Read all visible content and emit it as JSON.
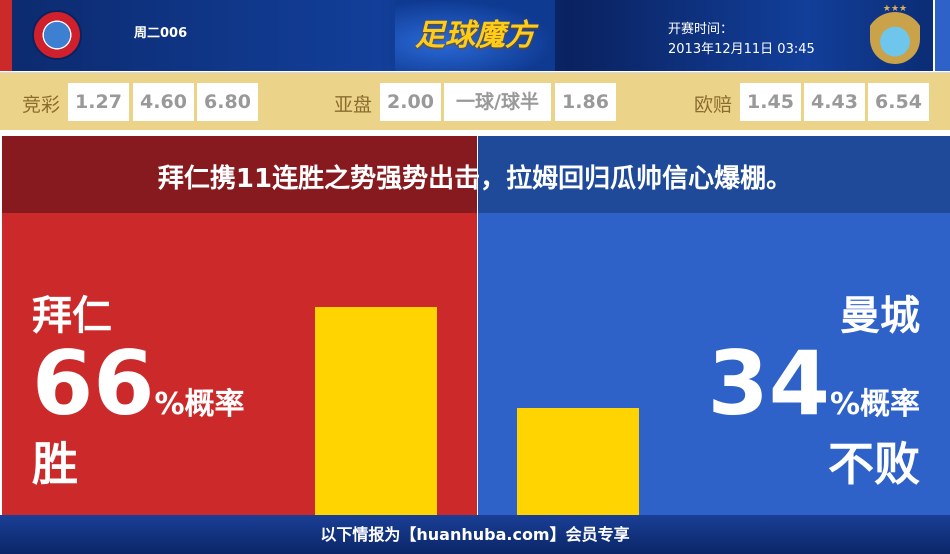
{
  "header": {
    "home_logo": "FC Bayern München crest",
    "away_logo": "Manchester City crest",
    "match_no": "周二006",
    "brand": "足球魔方",
    "time_label": "开赛时间：",
    "time_value": "2013年12月11日 03:45"
  },
  "odds": {
    "jingcai": {
      "label": "竞彩",
      "values": [
        "1.27",
        "4.60",
        "6.80"
      ]
    },
    "yapan": {
      "label": "亚盘",
      "values": [
        "2.00",
        "一球/球半",
        "1.86"
      ]
    },
    "oupei": {
      "label": "欧赔",
      "values": [
        "1.45",
        "4.43",
        "6.54"
      ]
    }
  },
  "headline": "拜仁携11连胜之势强势出击，拉姆回归瓜帅信心爆棚。",
  "home": {
    "team": "拜仁",
    "percent": 66,
    "percent_text": "66",
    "unit": "%概率",
    "result": "胜",
    "color": "#cc2a2a"
  },
  "away": {
    "team": "曼城",
    "percent": 34,
    "percent_text": "34",
    "unit": "%概率",
    "result": "不败",
    "color": "#2e62c9"
  },
  "bar_color": "#ffd400",
  "footer": "以下情报为【huanhuba.com】会员专享"
}
